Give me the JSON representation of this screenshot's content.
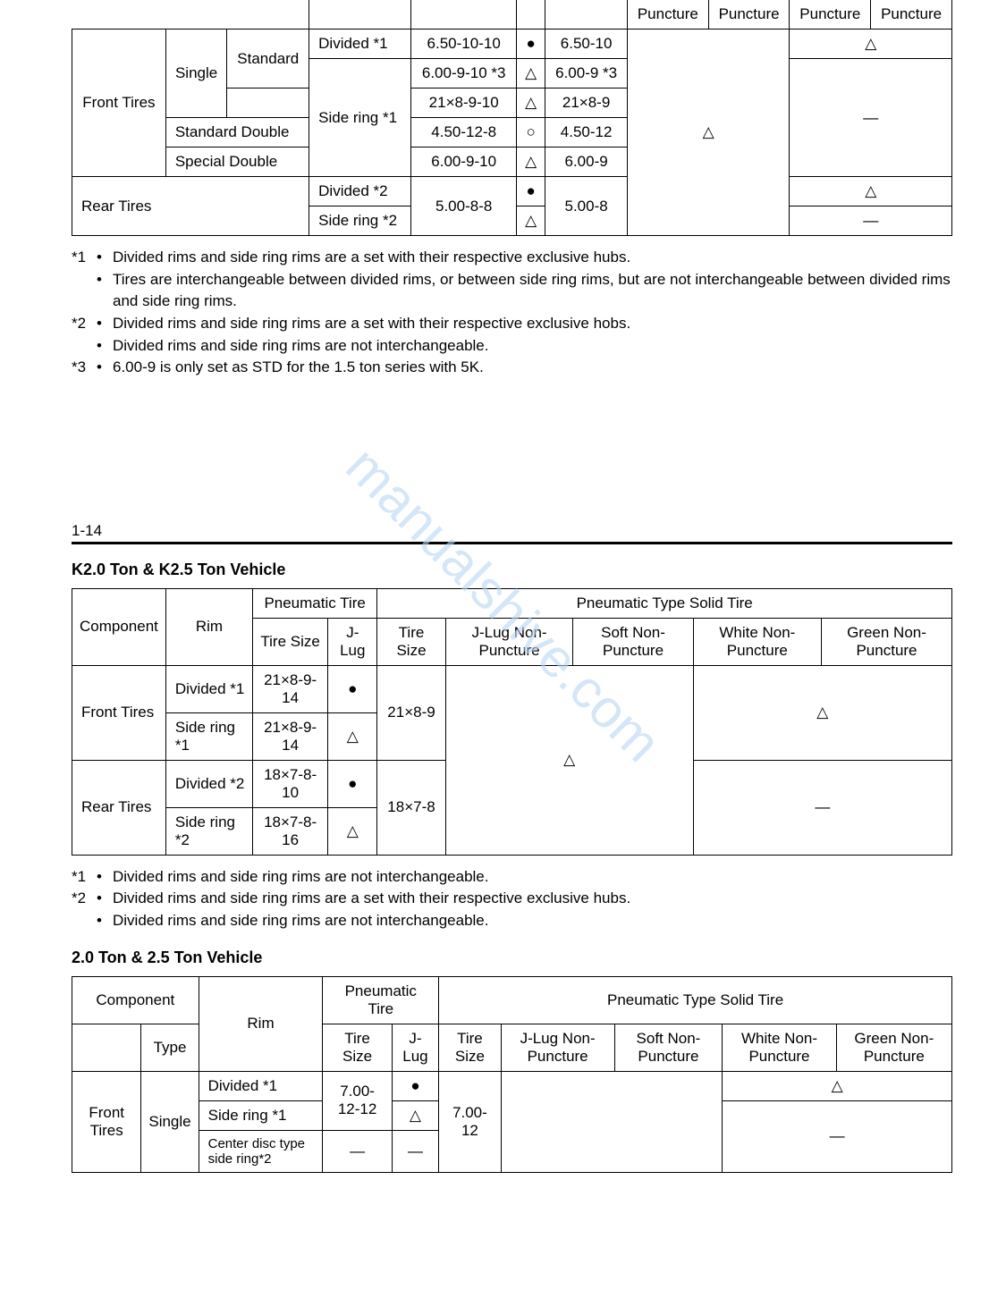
{
  "watermark": "manualshive.com",
  "symbols": {
    "filled_circle": "●",
    "open_circle": "○",
    "triangle": "△",
    "dash": "—"
  },
  "table1": {
    "top_header_fragments": [
      "Puncture",
      "Puncture",
      "Puncture",
      "Puncture"
    ],
    "rows": [
      {
        "group": "Front Tires",
        "config": "Single",
        "subconfig": "Standard",
        "rim": "Divided *1",
        "tire_size": "6.50-10-10",
        "jlug": "●",
        "solid_size": "6.50-10",
        "right_top": "△"
      },
      {
        "rim_span_label": "Side ring *1",
        "tire_size": "6.00-9-10 *3",
        "jlug": "△",
        "solid_size": "6.00-9 *3"
      },
      {
        "tire_size": "21×8-9-10",
        "jlug": "△",
        "solid_size": "21×8-9"
      },
      {
        "config": "Standard Double",
        "tire_size": "4.50-12-8",
        "jlug": "○",
        "solid_size": "4.50-12",
        "mid_tri": "△",
        "right_dash": "—"
      },
      {
        "config": "Special Double",
        "tire_size": "6.00-9-10",
        "jlug": "△",
        "solid_size": "6.00-9"
      },
      {
        "group": "Rear Tires",
        "rim": "Divided *2",
        "tire_size_span": "5.00-8-8",
        "jlug": "●",
        "solid_size_span": "5.00-8",
        "right_top": "△"
      },
      {
        "rim": "Side ring *2",
        "jlug": "△",
        "right_dash": "—"
      }
    ]
  },
  "notes1": [
    {
      "sup": "*1",
      "bullets": [
        "Divided rims and side ring rims are a set with their respective exclusive hubs.",
        "Tires are interchangeable between divided rims, or between side ring rims, but are not interchangeable between divided rims and side ring rims."
      ]
    },
    {
      "sup": "*2",
      "bullets": [
        "Divided rims and side ring rims are a set with their respective exclusive hobs.",
        "Divided rims and side ring rims are not interchangeable."
      ]
    },
    {
      "sup": "*3",
      "bullets": [
        "6.00-9 is only set as STD for the 1.5 ton series with 5K."
      ]
    }
  ],
  "page_number": "1-14",
  "section2_title": "K2.0 Ton & K2.5 Ton Vehicle",
  "table2": {
    "headers": {
      "component": "Component",
      "rim": "Rim",
      "pneumatic_tire": "Pneumatic Tire",
      "pneumatic_solid": "Pneumatic Type Solid Tire",
      "tire_size": "Tire Size",
      "jlug": "J-Lug",
      "solid_tire_size": "Tire Size",
      "jlug_np": "J-Lug Non-Puncture",
      "soft_np": "Soft Non-Puncture",
      "white_np": "White Non-Puncture",
      "green_np": "Green Non-Puncture"
    },
    "rows": [
      {
        "component": "Front Tires",
        "rim": "Divided *1",
        "tire_size": "21×8-9-14",
        "jlug": "●",
        "solid_size": "21×8-9",
        "right": "△"
      },
      {
        "rim": "Side ring *1",
        "tire_size": "21×8-9-14",
        "jlug": "△"
      },
      {
        "component": "Rear Tires",
        "rim": "Divided *2",
        "tire_size": "18×7-8-10",
        "jlug": "●",
        "solid_size": "18×7-8",
        "mid_tri": "△",
        "right": "—"
      },
      {
        "rim": "Side ring *2",
        "tire_size": "18×7-8-16",
        "jlug": "△"
      }
    ]
  },
  "notes2": [
    {
      "sup": "*1",
      "bullets": [
        "Divided rims and side ring rims are not interchangeable."
      ]
    },
    {
      "sup": "*2",
      "bullets": [
        "Divided rims and side ring rims are a set with their respective exclusive hubs.",
        "Divided rims and side ring rims are not interchangeable."
      ]
    }
  ],
  "section3_title": "2.0 Ton & 2.5 Ton Vehicle",
  "table3": {
    "headers": {
      "component": "Component",
      "type": "Type",
      "rim": "Rim",
      "pneumatic_tire": "Pneumatic Tire",
      "pneumatic_solid": "Pneumatic Type Solid Tire",
      "tire_size": "Tire Size",
      "jlug": "J-Lug",
      "solid_tire_size": "Tire Size",
      "jlug_np": "J-Lug Non-Puncture",
      "soft_np": "Soft Non-Puncture",
      "white_np": "White Non-Puncture",
      "green_np": "Green Non-Puncture"
    },
    "rows": [
      {
        "group": "Front Tires",
        "type": "Single",
        "rim": "Divided *1",
        "tire_size_span": "7.00-12-12",
        "jlug": "●",
        "solid_size": "7.00-12",
        "right": "△"
      },
      {
        "rim": "Side ring *1",
        "jlug": "△"
      },
      {
        "rim": "Center disc type side ring*2",
        "tire_size": "—",
        "jlug": "—",
        "right": "—"
      }
    ]
  }
}
